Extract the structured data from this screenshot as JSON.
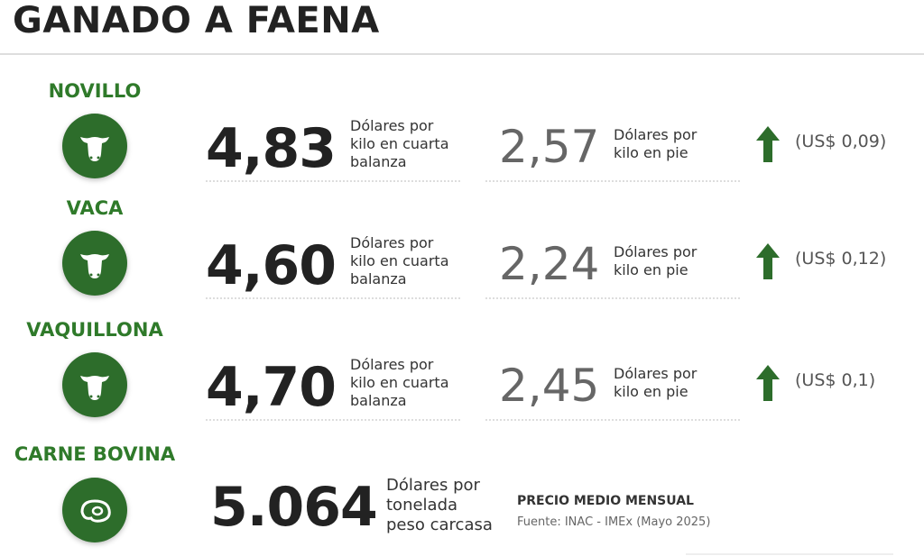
{
  "header": {
    "title": "GANADO A FAENA"
  },
  "rows": [
    {
      "name": "NOVILLO",
      "value": "4,83",
      "unit": [
        "Dólares por",
        "kilo en cuarta",
        "balanza"
      ],
      "second_value": "2,57",
      "second_unit": [
        "Dólares por",
        "kilo en pie"
      ],
      "change": "(US$ 0,09)"
    },
    {
      "name": "VACA",
      "value": "4,60",
      "unit": [
        "Dólares por",
        "kilo en cuarta",
        "balanza"
      ],
      "second_value": "2,24",
      "second_unit": [
        "Dólares por",
        "kilo en pie"
      ],
      "change": "(US$ 0,12)"
    },
    {
      "name": "VAQUILLONA",
      "value": "4,70",
      "unit": [
        "Dólares por",
        "kilo en cuarta",
        "balanza"
      ],
      "second_value": "2,45",
      "second_unit": [
        "Dólares por",
        "kilo en pie"
      ],
      "change": "(US$ 0,1)"
    }
  ],
  "beef": {
    "name": "CARNE BOVINA",
    "value": "5.064",
    "unit": [
      "Dólares por",
      "tonelada",
      "peso carcasa"
    ],
    "note_title": "PRECIO MEDIO MENSUAL",
    "source": "Fuente: INAC - IMEx (Mayo 2025)"
  }
}
